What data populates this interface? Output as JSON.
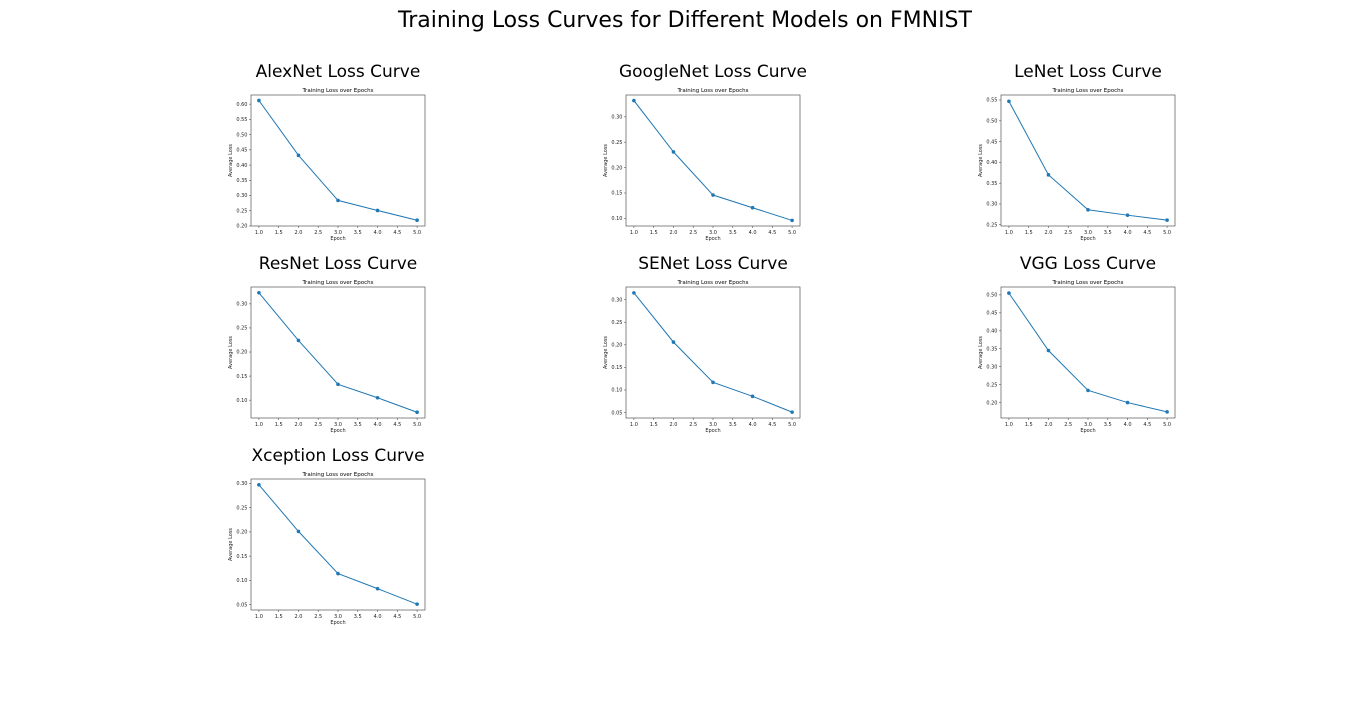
{
  "figure": {
    "title": "Training Loss Curves for Different Models on FMNIST",
    "line_color": "#1f77b4"
  },
  "chart_data": [
    {
      "type": "line",
      "panel_title": "AlexNet Loss Curve",
      "title": "Training Loss over Epochs",
      "xlabel": "Epoch",
      "ylabel": "Average Loss",
      "x": [
        1,
        2,
        3,
        4,
        5
      ],
      "series": [
        {
          "values": [
            0.612,
            0.432,
            0.284,
            0.251,
            0.219
          ]
        }
      ],
      "xlim": [
        0.8,
        5.2
      ],
      "ylim": [
        0.2,
        0.63
      ],
      "xticks": [
        "1.0",
        "1.5",
        "2.0",
        "2.5",
        "3.0",
        "3.5",
        "4.0",
        "4.5",
        "5.0"
      ],
      "yticks": [
        "0.20",
        "0.25",
        "0.30",
        "0.35",
        "0.40",
        "0.45",
        "0.50",
        "0.55",
        "0.60"
      ],
      "grid": false
    },
    {
      "type": "line",
      "panel_title": "GoogleNet Loss Curve",
      "title": "Training Loss over Epochs",
      "xlabel": "Epoch",
      "ylabel": "Average Loss",
      "x": [
        1,
        2,
        3,
        4,
        5
      ],
      "series": [
        {
          "values": [
            0.332,
            0.231,
            0.146,
            0.121,
            0.096
          ]
        }
      ],
      "xlim": [
        0.8,
        5.2
      ],
      "ylim": [
        0.085,
        0.343
      ],
      "xticks": [
        "1.0",
        "1.5",
        "2.0",
        "2.5",
        "3.0",
        "3.5",
        "4.0",
        "4.5",
        "5.0"
      ],
      "yticks": [
        "0.10",
        "0.15",
        "0.20",
        "0.25",
        "0.30"
      ],
      "grid": false
    },
    {
      "type": "line",
      "panel_title": "LeNet Loss Curve",
      "title": "Training Loss over Epochs",
      "xlabel": "Epoch",
      "ylabel": "Average Loss",
      "x": [
        1,
        2,
        3,
        4,
        5
      ],
      "series": [
        {
          "values": [
            0.547,
            0.37,
            0.286,
            0.273,
            0.261
          ]
        }
      ],
      "xlim": [
        0.8,
        5.2
      ],
      "ylim": [
        0.247,
        0.562
      ],
      "xticks": [
        "1.0",
        "1.5",
        "2.0",
        "2.5",
        "3.0",
        "3.5",
        "4.0",
        "4.5",
        "5.0"
      ],
      "yticks": [
        "0.25",
        "0.30",
        "0.35",
        "0.40",
        "0.45",
        "0.50",
        "0.55"
      ],
      "grid": false
    },
    {
      "type": "line",
      "panel_title": "ResNet Loss Curve",
      "title": "Training Loss over Epochs",
      "xlabel": "Epoch",
      "ylabel": "Average Loss",
      "x": [
        1,
        2,
        3,
        4,
        5
      ],
      "series": [
        {
          "values": [
            0.323,
            0.224,
            0.133,
            0.105,
            0.075
          ]
        }
      ],
      "xlim": [
        0.8,
        5.2
      ],
      "ylim": [
        0.063,
        0.335
      ],
      "xticks": [
        "1.0",
        "1.5",
        "2.0",
        "2.5",
        "3.0",
        "3.5",
        "4.0",
        "4.5",
        "5.0"
      ],
      "yticks": [
        "0.10",
        "0.15",
        "0.20",
        "0.25",
        "0.30"
      ],
      "grid": false
    },
    {
      "type": "line",
      "panel_title": "SENet Loss Curve",
      "title": "Training Loss over Epochs",
      "xlabel": "Epoch",
      "ylabel": "Average Loss",
      "x": [
        1,
        2,
        3,
        4,
        5
      ],
      "series": [
        {
          "values": [
            0.315,
            0.206,
            0.117,
            0.086,
            0.051
          ]
        }
      ],
      "xlim": [
        0.8,
        5.2
      ],
      "ylim": [
        0.038,
        0.328
      ],
      "xticks": [
        "1.0",
        "1.5",
        "2.0",
        "2.5",
        "3.0",
        "3.5",
        "4.0",
        "4.5",
        "5.0"
      ],
      "yticks": [
        "0.05",
        "0.10",
        "0.15",
        "0.20",
        "0.25",
        "0.30"
      ],
      "grid": false
    },
    {
      "type": "line",
      "panel_title": "VGG Loss Curve",
      "title": "Training Loss over Epochs",
      "xlabel": "Epoch",
      "ylabel": "Average Loss",
      "x": [
        1,
        2,
        3,
        4,
        5
      ],
      "series": [
        {
          "values": [
            0.505,
            0.345,
            0.234,
            0.2,
            0.174
          ]
        }
      ],
      "xlim": [
        0.8,
        5.2
      ],
      "ylim": [
        0.157,
        0.522
      ],
      "xticks": [
        "1.0",
        "1.5",
        "2.0",
        "2.5",
        "3.0",
        "3.5",
        "4.0",
        "4.5",
        "5.0"
      ],
      "yticks": [
        "0.20",
        "0.25",
        "0.30",
        "0.35",
        "0.40",
        "0.45",
        "0.50"
      ],
      "grid": false
    },
    {
      "type": "line",
      "panel_title": "Xception Loss Curve",
      "title": "Training Loss over Epochs",
      "xlabel": "Epoch",
      "ylabel": "Average Loss",
      "x": [
        1,
        2,
        3,
        4,
        5
      ],
      "series": [
        {
          "values": [
            0.297,
            0.201,
            0.114,
            0.083,
            0.051
          ]
        }
      ],
      "xlim": [
        0.8,
        5.2
      ],
      "ylim": [
        0.039,
        0.309
      ],
      "xticks": [
        "1.0",
        "1.5",
        "2.0",
        "2.5",
        "3.0",
        "3.5",
        "4.0",
        "4.5",
        "5.0"
      ],
      "yticks": [
        "0.05",
        "0.10",
        "0.15",
        "0.20",
        "0.25",
        "0.30"
      ],
      "grid": false
    }
  ]
}
